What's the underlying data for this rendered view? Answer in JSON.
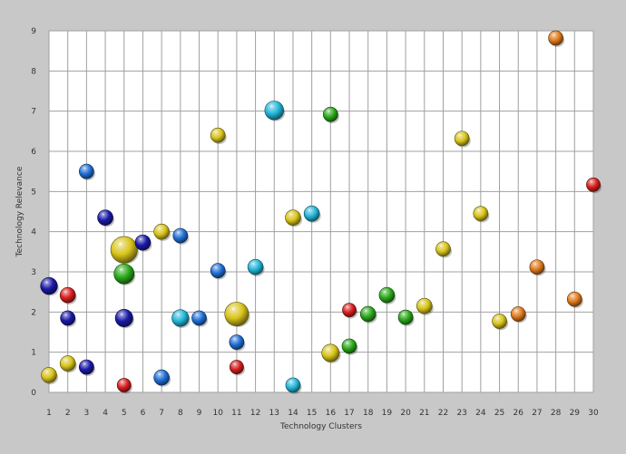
{
  "chart_data": {
    "type": "scatter",
    "subtype": "bubble",
    "title": "",
    "xlabel": "Technology Clusters",
    "ylabel": "Technology Relevance",
    "xlim": [
      1,
      30
    ],
    "ylim": [
      0,
      9
    ],
    "xticks": [
      1,
      2,
      3,
      4,
      5,
      6,
      7,
      8,
      9,
      10,
      11,
      12,
      13,
      14,
      15,
      16,
      17,
      18,
      19,
      20,
      21,
      22,
      23,
      24,
      25,
      26,
      27,
      28,
      29,
      30
    ],
    "yticks": [
      0,
      1,
      2,
      3,
      4,
      5,
      6,
      7,
      8,
      9
    ],
    "grid": true,
    "legend": "none",
    "colors": {
      "navy": "#1a1aa8",
      "blue": "#1f6fd6",
      "cyan": "#22b6d8",
      "green": "#2aa81a",
      "yellow": "#d8c41a",
      "orange": "#e07a1a",
      "red": "#d81e1e",
      "plot_background": "#ffffff",
      "page_background": "#c8c8c8"
    },
    "points": [
      {
        "x": 1,
        "y": 2.65,
        "size": 1.2,
        "color": "navy"
      },
      {
        "x": 1,
        "y": 0.43,
        "size": 1.0,
        "color": "yellow"
      },
      {
        "x": 2,
        "y": 2.42,
        "size": 1.0,
        "color": "red"
      },
      {
        "x": 2,
        "y": 1.85,
        "size": 0.9,
        "color": "navy"
      },
      {
        "x": 2,
        "y": 0.72,
        "size": 1.0,
        "color": "yellow"
      },
      {
        "x": 3,
        "y": 5.5,
        "size": 0.9,
        "color": "blue"
      },
      {
        "x": 3,
        "y": 0.63,
        "size": 0.9,
        "color": "navy"
      },
      {
        "x": 4,
        "y": 4.35,
        "size": 1.0,
        "color": "navy"
      },
      {
        "x": 5,
        "y": 3.55,
        "size": 3.0,
        "color": "yellow"
      },
      {
        "x": 5,
        "y": 2.95,
        "size": 1.7,
        "color": "green"
      },
      {
        "x": 5,
        "y": 1.85,
        "size": 1.3,
        "color": "navy"
      },
      {
        "x": 5,
        "y": 0.18,
        "size": 0.8,
        "color": "red"
      },
      {
        "x": 6,
        "y": 3.73,
        "size": 1.0,
        "color": "navy"
      },
      {
        "x": 7,
        "y": 4.0,
        "size": 1.0,
        "color": "yellow"
      },
      {
        "x": 7,
        "y": 0.37,
        "size": 1.0,
        "color": "blue"
      },
      {
        "x": 8,
        "y": 3.9,
        "size": 0.9,
        "color": "blue"
      },
      {
        "x": 8,
        "y": 1.85,
        "size": 1.2,
        "color": "cyan"
      },
      {
        "x": 9,
        "y": 1.85,
        "size": 0.9,
        "color": "blue"
      },
      {
        "x": 10,
        "y": 6.4,
        "size": 0.9,
        "color": "yellow"
      },
      {
        "x": 10,
        "y": 3.03,
        "size": 0.9,
        "color": "blue"
      },
      {
        "x": 11,
        "y": 1.95,
        "size": 2.4,
        "color": "yellow"
      },
      {
        "x": 11,
        "y": 1.25,
        "size": 0.9,
        "color": "blue"
      },
      {
        "x": 11,
        "y": 0.63,
        "size": 0.8,
        "color": "red"
      },
      {
        "x": 12,
        "y": 3.12,
        "size": 1.0,
        "color": "cyan"
      },
      {
        "x": 13,
        "y": 7.02,
        "size": 1.5,
        "color": "cyan"
      },
      {
        "x": 14,
        "y": 4.35,
        "size": 1.0,
        "color": "yellow"
      },
      {
        "x": 14,
        "y": 0.18,
        "size": 0.9,
        "color": "cyan"
      },
      {
        "x": 15,
        "y": 4.45,
        "size": 1.0,
        "color": "cyan"
      },
      {
        "x": 16,
        "y": 6.92,
        "size": 0.9,
        "color": "green"
      },
      {
        "x": 16,
        "y": 0.98,
        "size": 1.3,
        "color": "yellow"
      },
      {
        "x": 17,
        "y": 2.05,
        "size": 0.8,
        "color": "red"
      },
      {
        "x": 17,
        "y": 1.15,
        "size": 0.9,
        "color": "green"
      },
      {
        "x": 18,
        "y": 1.95,
        "size": 1.0,
        "color": "green"
      },
      {
        "x": 19,
        "y": 2.42,
        "size": 1.0,
        "color": "green"
      },
      {
        "x": 20,
        "y": 1.87,
        "size": 0.9,
        "color": "green"
      },
      {
        "x": 21,
        "y": 2.15,
        "size": 1.0,
        "color": "yellow"
      },
      {
        "x": 22,
        "y": 3.57,
        "size": 0.9,
        "color": "yellow"
      },
      {
        "x": 23,
        "y": 6.32,
        "size": 0.9,
        "color": "yellow"
      },
      {
        "x": 24,
        "y": 4.45,
        "size": 0.9,
        "color": "yellow"
      },
      {
        "x": 25,
        "y": 1.77,
        "size": 0.9,
        "color": "yellow"
      },
      {
        "x": 26,
        "y": 1.95,
        "size": 0.9,
        "color": "orange"
      },
      {
        "x": 27,
        "y": 3.12,
        "size": 0.9,
        "color": "orange"
      },
      {
        "x": 28,
        "y": 8.82,
        "size": 0.9,
        "color": "orange"
      },
      {
        "x": 29,
        "y": 2.32,
        "size": 0.9,
        "color": "orange"
      },
      {
        "x": 30,
        "y": 5.17,
        "size": 0.8,
        "color": "red"
      }
    ]
  }
}
